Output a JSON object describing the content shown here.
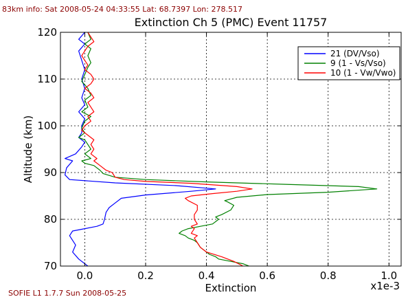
{
  "header": {
    "info": "83km info: Sat 2008-05-24 04:33:55 Lat: 68.7397 Lon: 278.517"
  },
  "footer": {
    "version": "SOFIE  L1  1.7.7 Sun 2008-05-25"
  },
  "chart_data": {
    "type": "line",
    "title": "Extinction Ch 5 (PMC) Event 11757",
    "xlabel": "Extinction",
    "ylabel": "Altitude (km)",
    "x_multiplier": "x1e-3",
    "xlim": [
      -0.08,
      1.04
    ],
    "ylim": [
      70,
      120
    ],
    "x_ticks": [
      0.0,
      0.2,
      0.4,
      0.6,
      0.8,
      1.0
    ],
    "x_tick_labels": [
      "0.0",
      "0.2",
      "0.4",
      "0.6",
      "0.8",
      "1.0"
    ],
    "y_ticks": [
      70,
      80,
      90,
      100,
      110,
      120
    ],
    "y_tick_labels": [
      "70",
      "80",
      "90",
      "100",
      "110",
      "120"
    ],
    "grid": true,
    "legend_position": "top-right",
    "series": [
      {
        "name": "21 (DV/Vso)",
        "color": "#0000ff",
        "points": [
          [
            0.01,
            70.0
          ],
          [
            -0.02,
            71.5
          ],
          [
            -0.04,
            73.0
          ],
          [
            -0.03,
            74.5
          ],
          [
            -0.05,
            76.5
          ],
          [
            -0.04,
            77.5
          ],
          [
            0.0,
            78.0
          ],
          [
            0.04,
            78.5
          ],
          [
            0.06,
            79.0
          ],
          [
            0.065,
            80.0
          ],
          [
            0.07,
            81.5
          ],
          [
            0.08,
            82.5
          ],
          [
            0.1,
            83.5
          ],
          [
            0.12,
            84.5
          ],
          [
            0.2,
            85.2
          ],
          [
            0.35,
            86.0
          ],
          [
            0.43,
            86.5
          ],
          [
            0.3,
            87.2
          ],
          [
            0.1,
            87.8
          ],
          [
            -0.05,
            88.5
          ],
          [
            -0.065,
            89.5
          ],
          [
            -0.06,
            91.0
          ],
          [
            -0.04,
            92.5
          ],
          [
            -0.065,
            93.0
          ],
          [
            -0.03,
            94.0
          ],
          [
            -0.01,
            95.5
          ],
          [
            0.0,
            96.5
          ],
          [
            -0.02,
            97.5
          ],
          [
            -0.01,
            98.5
          ],
          [
            -0.01,
            100.0
          ],
          [
            0.0,
            101.5
          ],
          [
            -0.02,
            103.0
          ],
          [
            0.0,
            104.5
          ],
          [
            -0.01,
            106.0
          ],
          [
            0.0,
            108.0
          ],
          [
            -0.01,
            110.0
          ],
          [
            0.0,
            112.0
          ],
          [
            -0.01,
            114.0
          ],
          [
            -0.02,
            116.0
          ],
          [
            0.0,
            117.5
          ],
          [
            -0.02,
            118.5
          ],
          [
            0.0,
            120.0
          ]
        ]
      },
      {
        "name": "9 (1 - Vs/Vso)",
        "color": "#008000",
        "points": [
          [
            0.54,
            70.0
          ],
          [
            0.52,
            70.5
          ],
          [
            0.48,
            71.0
          ],
          [
            0.44,
            71.5
          ],
          [
            0.43,
            72.0
          ],
          [
            0.41,
            72.5
          ],
          [
            0.4,
            73.0
          ],
          [
            0.39,
            73.5
          ],
          [
            0.38,
            74.0
          ],
          [
            0.37,
            75.0
          ],
          [
            0.36,
            75.5
          ],
          [
            0.34,
            76.0
          ],
          [
            0.33,
            76.5
          ],
          [
            0.31,
            77.0
          ],
          [
            0.32,
            77.5
          ],
          [
            0.34,
            78.0
          ],
          [
            0.38,
            78.5
          ],
          [
            0.42,
            79.0
          ],
          [
            0.44,
            80.0
          ],
          [
            0.43,
            80.5
          ],
          [
            0.45,
            81.0
          ],
          [
            0.48,
            82.0
          ],
          [
            0.49,
            83.0
          ],
          [
            0.47,
            83.7
          ],
          [
            0.46,
            84.0
          ],
          [
            0.5,
            84.7
          ],
          [
            0.6,
            85.3
          ],
          [
            0.8,
            85.8
          ],
          [
            0.96,
            86.5
          ],
          [
            0.9,
            87.0
          ],
          [
            0.65,
            87.5
          ],
          [
            0.4,
            88.0
          ],
          [
            0.2,
            88.5
          ],
          [
            0.1,
            89.0
          ],
          [
            0.06,
            89.8
          ],
          [
            0.05,
            90.5
          ],
          [
            0.03,
            91.5
          ],
          [
            0.0,
            92.0
          ],
          [
            -0.01,
            92.5
          ],
          [
            0.02,
            93.0
          ],
          [
            0.0,
            94.0
          ],
          [
            0.02,
            95.0
          ],
          [
            0.01,
            96.0
          ],
          [
            0.0,
            97.0
          ],
          [
            -0.02,
            97.5
          ],
          [
            0.0,
            98.5
          ],
          [
            -0.01,
            99.5
          ],
          [
            0.0,
            101.0
          ],
          [
            0.02,
            102.0
          ],
          [
            -0.01,
            103.0
          ],
          [
            0.01,
            104.0
          ],
          [
            0.0,
            105.5
          ],
          [
            0.02,
            106.5
          ],
          [
            0.01,
            108.0
          ],
          [
            -0.01,
            109.5
          ],
          [
            0.0,
            111.0
          ],
          [
            0.01,
            112.5
          ],
          [
            0.02,
            113.5
          ],
          [
            0.01,
            115.0
          ],
          [
            0.02,
            116.5
          ],
          [
            0.0,
            117.5
          ],
          [
            0.02,
            118.5
          ],
          [
            0.01,
            120.0
          ]
        ]
      },
      {
        "name": "10 (1 - Vw/Vwo)",
        "color": "#ff0000",
        "points": [
          [
            0.52,
            70.0
          ],
          [
            0.49,
            71.0
          ],
          [
            0.45,
            72.0
          ],
          [
            0.4,
            73.0
          ],
          [
            0.38,
            74.0
          ],
          [
            0.37,
            75.0
          ],
          [
            0.36,
            76.0
          ],
          [
            0.37,
            76.5
          ],
          [
            0.35,
            77.0
          ],
          [
            0.36,
            78.0
          ],
          [
            0.35,
            78.5
          ],
          [
            0.37,
            79.0
          ],
          [
            0.36,
            80.0
          ],
          [
            0.36,
            81.0
          ],
          [
            0.37,
            82.0
          ],
          [
            0.37,
            83.0
          ],
          [
            0.34,
            84.0
          ],
          [
            0.33,
            84.5
          ],
          [
            0.35,
            85.0
          ],
          [
            0.42,
            85.5
          ],
          [
            0.5,
            86.0
          ],
          [
            0.55,
            86.5
          ],
          [
            0.5,
            87.0
          ],
          [
            0.35,
            87.7
          ],
          [
            0.2,
            88.1
          ],
          [
            0.13,
            88.5
          ],
          [
            0.1,
            89.0
          ],
          [
            0.09,
            90.0
          ],
          [
            0.07,
            90.5
          ],
          [
            0.05,
            91.5
          ],
          [
            0.03,
            92.5
          ],
          [
            0.04,
            93.0
          ],
          [
            0.02,
            94.0
          ],
          [
            0.03,
            95.0
          ],
          [
            0.02,
            96.0
          ],
          [
            0.03,
            97.0
          ],
          [
            0.01,
            98.0
          ],
          [
            -0.01,
            99.0
          ],
          [
            0.0,
            100.0
          ],
          [
            0.02,
            101.0
          ],
          [
            0.01,
            102.0
          ],
          [
            0.03,
            103.0
          ],
          [
            0.02,
            104.0
          ],
          [
            0.01,
            105.0
          ],
          [
            0.03,
            106.0
          ],
          [
            0.02,
            107.0
          ],
          [
            0.0,
            108.0
          ],
          [
            0.02,
            109.0
          ],
          [
            0.03,
            110.0
          ],
          [
            0.02,
            111.0
          ],
          [
            0.0,
            112.0
          ],
          [
            0.01,
            113.0
          ],
          [
            0.0,
            114.0
          ],
          [
            -0.01,
            115.0
          ],
          [
            0.0,
            116.0
          ],
          [
            0.01,
            117.0
          ],
          [
            0.03,
            118.0
          ],
          [
            0.02,
            119.0
          ],
          [
            0.01,
            120.0
          ]
        ]
      }
    ]
  }
}
